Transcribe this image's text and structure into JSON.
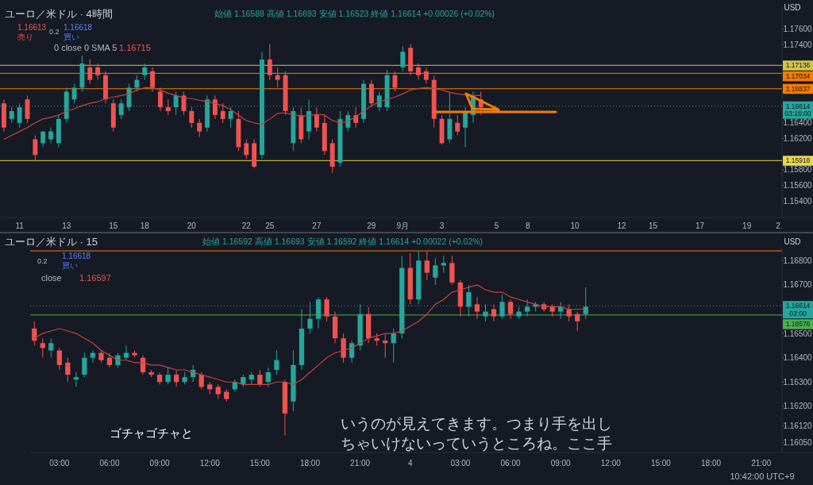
{
  "chart_data": [
    {
      "type": "candlestick",
      "title": "ユーロ／米ドル · 4時間",
      "subtitle": "始値 1.16588 高値 1.16693 安値 1.16523 終値 1.16614 +0.00026 (+0.02%)",
      "categories": [
        null,
        null,
        "11",
        null,
        null,
        null,
        null,
        null,
        "13",
        null,
        null,
        null,
        null,
        null,
        "15",
        null,
        null,
        null,
        "18",
        null,
        null,
        null,
        null,
        null,
        "20",
        null,
        null,
        null,
        null,
        null,
        null,
        "22",
        null,
        null,
        "25",
        null,
        null,
        null,
        null,
        null,
        "27",
        null,
        null,
        null,
        null,
        null,
        null,
        "29",
        null,
        null,
        null,
        "9月",
        null,
        null,
        null,
        null,
        "3",
        null,
        null,
        null,
        null,
        null,
        null,
        "5",
        null,
        null,
        null,
        "8",
        null,
        null,
        null,
        null,
        null,
        "10",
        null,
        null,
        null,
        null,
        null,
        "12",
        null,
        null,
        null,
        "15",
        null,
        null,
        null,
        null,
        null,
        "17",
        null,
        null,
        null,
        null,
        null,
        "19",
        null,
        null,
        null,
        "2"
      ],
      "series": [
        {
          "type": "candlestick",
          "ohlc": [
            [
              1.1665,
              1.167,
              1.1629,
              1.1634
            ],
            [
              1.1645,
              1.166,
              1.164,
              1.1655
            ],
            [
              1.164,
              1.1665,
              1.1634,
              1.166
            ],
            [
              1.167,
              1.1675,
              1.164,
              1.1645
            ],
            [
              1.1619,
              1.1624,
              1.1591,
              1.1599
            ],
            [
              1.1614,
              1.1629,
              1.1609,
              1.1629
            ],
            [
              1.1619,
              1.1634,
              1.1614,
              1.1629
            ],
            [
              1.1614,
              1.165,
              1.1609,
              1.1645
            ],
            [
              1.1645,
              1.1685,
              1.164,
              1.168
            ],
            [
              1.167,
              1.169,
              1.1665,
              1.1685
            ],
            [
              1.1685,
              1.1726,
              1.168,
              1.1716
            ],
            [
              1.1711,
              1.1721,
              1.169,
              1.1695
            ],
            [
              1.1711,
              1.1716,
              1.1695,
              1.1701
            ],
            [
              1.1701,
              1.1706,
              1.1665,
              1.167
            ],
            [
              1.1665,
              1.167,
              1.1629,
              1.1634
            ],
            [
              1.165,
              1.167,
              1.1645,
              1.1665
            ],
            [
              1.166,
              1.169,
              1.1655,
              1.1685
            ],
            [
              1.1685,
              1.1701,
              1.168,
              1.1695
            ],
            [
              1.1701,
              1.1716,
              1.1695,
              1.1711
            ],
            [
              1.1706,
              1.1711,
              1.168,
              1.1685
            ],
            [
              1.168,
              1.1685,
              1.1655,
              1.166
            ],
            [
              1.166,
              1.167,
              1.165,
              1.1655
            ],
            [
              1.166,
              1.168,
              1.165,
              1.1675
            ],
            [
              1.1675,
              1.168,
              1.165,
              1.1655
            ],
            [
              1.1655,
              1.166,
              1.1634,
              1.164
            ],
            [
              1.164,
              1.1645,
              1.1622,
              1.1629
            ],
            [
              1.1634,
              1.1675,
              1.1629,
              1.167
            ],
            [
              1.167,
              1.1675,
              1.1645,
              1.165
            ],
            [
              1.1655,
              1.1665,
              1.164,
              1.1645
            ],
            [
              1.1645,
              1.166,
              1.1634,
              1.1655
            ],
            [
              1.1645,
              1.1655,
              1.1604,
              1.1609
            ],
            [
              1.1614,
              1.1619,
              1.1594,
              1.1599
            ],
            [
              1.1614,
              1.1619,
              1.1582,
              1.1584
            ],
            [
              1.1599,
              1.1731,
              1.1594,
              1.1721
            ],
            [
              1.1721,
              1.1741,
              1.1695,
              1.1701
            ],
            [
              1.1701,
              1.1711,
              1.1685,
              1.1695
            ],
            [
              1.1701,
              1.1706,
              1.165,
              1.1655
            ],
            [
              1.1614,
              1.166,
              1.1604,
              1.1655
            ],
            [
              1.165,
              1.166,
              1.1614,
              1.1619
            ],
            [
              1.1629,
              1.167,
              1.1619,
              1.1655
            ],
            [
              1.165,
              1.166,
              1.1629,
              1.1634
            ],
            [
              1.164,
              1.165,
              1.1599,
              1.1604
            ],
            [
              1.1614,
              1.1619,
              1.1576,
              1.1584
            ],
            [
              1.1589,
              1.1655,
              1.1584,
              1.1645
            ],
            [
              1.1634,
              1.1655,
              1.1629,
              1.165
            ],
            [
              1.165,
              1.166,
              1.1634,
              1.164
            ],
            [
              1.1645,
              1.1695,
              1.164,
              1.169
            ],
            [
              1.169,
              1.1695,
              1.166,
              1.1665
            ],
            [
              1.166,
              1.168,
              1.1655,
              1.1675
            ],
            [
              1.166,
              1.1708,
              1.1655,
              1.1701
            ],
            [
              1.1701,
              1.1706,
              1.168,
              1.1685
            ],
            [
              1.1711,
              1.1738,
              1.1706,
              1.1731
            ],
            [
              1.1736,
              1.1741,
              1.1701,
              1.1706
            ],
            [
              1.1711,
              1.1716,
              1.1695,
              1.1701
            ],
            [
              1.1706,
              1.1711,
              1.169,
              1.1695
            ],
            [
              1.1695,
              1.1701,
              1.1634,
              1.1645
            ],
            [
              1.1645,
              1.165,
              1.1612,
              1.1614
            ],
            [
              1.1619,
              1.168,
              1.1614,
              1.1645
            ],
            [
              1.164,
              1.165,
              1.1624,
              1.1629
            ],
            [
              1.1634,
              1.166,
              1.1609,
              1.1655
            ],
            [
              1.165,
              1.168,
              1.164,
              1.1675
            ],
            [
              1.167,
              1.168,
              1.165,
              1.166
            ],
            null,
            null,
            null,
            null,
            null,
            null,
            null,
            null,
            null,
            null,
            null,
            null,
            null,
            null,
            null,
            null,
            null,
            null,
            null,
            null,
            null,
            null,
            null,
            null,
            null,
            null,
            null,
            null,
            null,
            null,
            null,
            null,
            null,
            null,
            null,
            null,
            null,
            null
          ],
          "colors": [
            "#ef5350",
            "#26a69a",
            "#26a69a",
            "#ef5350",
            "#ef5350",
            "#26a69a",
            "#26a69a",
            "#26a69a",
            "#26a69a",
            "#26a69a",
            "#26a69a",
            "#ef5350",
            "#ef5350",
            "#ef5350",
            "#ef5350",
            "#26a69a",
            "#26a69a",
            "#26a69a",
            "#26a69a",
            "#ef5350",
            "#ef5350",
            "#ef5350",
            "#26a69a",
            "#ef5350",
            "#ef5350",
            "#ef5350",
            "#26a69a",
            "#ef5350",
            "#ef5350",
            "#26a69a",
            "#ef5350",
            "#ef5350",
            "#ef5350",
            "#26a69a",
            "#ef5350",
            "#ef5350",
            "#ef5350",
            "#26a69a",
            "#ef5350",
            "#26a69a",
            "#ef5350",
            "#ef5350",
            "#ef5350",
            "#26a69a",
            "#26a69a",
            "#ef5350",
            "#26a69a",
            "#ef5350",
            "#26a69a",
            "#26a69a",
            "#ef5350",
            "#26a69a",
            "#ef5350",
            "#ef5350",
            "#ef5350",
            "#ef5350",
            "#ef5350",
            "#26a69a",
            "#ef5350",
            "#26a69a",
            "#26a69a",
            "#ef5350",
            null,
            null,
            null,
            null,
            null,
            null,
            null,
            null,
            null,
            null,
            null,
            null,
            null,
            null,
            null,
            null,
            null,
            null,
            null,
            null,
            null,
            null,
            null,
            null,
            null,
            null,
            null,
            null,
            null,
            null,
            null,
            null,
            null,
            null,
            null,
            null,
            null,
            null
          ]
        },
        {
          "type": "line",
          "color": "#c2453f",
          "values": [
            1.1619,
            1.1624,
            1.1629,
            1.1634,
            1.164,
            1.1645,
            1.1647,
            1.165,
            1.1655,
            1.1658,
            1.1662,
            1.1665,
            1.1667,
            1.1671,
            1.1673,
            1.1675,
            1.1677,
            1.1682,
            1.1685,
            1.1685,
            1.1682,
            1.1678,
            1.1675,
            1.1672,
            1.1671,
            1.1669,
            1.1667,
            1.1665,
            1.1662,
            1.1657,
            1.165,
            1.1643,
            1.164,
            1.1638,
            1.1645,
            1.1652,
            1.1653,
            1.165,
            1.1649,
            1.1649,
            1.1651,
            1.165,
            1.1643,
            1.164,
            1.1642,
            1.1648,
            1.1655,
            1.1662,
            1.1667,
            1.167,
            1.1673,
            1.1677,
            1.1682,
            1.1684,
            1.1685,
            1.1684,
            1.1682,
            1.1679,
            1.1677,
            1.1676,
            1.1675,
            1.1675,
            null,
            null,
            null,
            null,
            null,
            null,
            null,
            null,
            null,
            null,
            null,
            null,
            null,
            null,
            null,
            null,
            null,
            null,
            null,
            null,
            null,
            null,
            null,
            null,
            null,
            null,
            null,
            null,
            null,
            null,
            null,
            null,
            null,
            null,
            null,
            null,
            null,
            null
          ]
        }
      ],
      "ylim": [
        1.1519,
        1.1789
      ],
      "yticks": [
        {
          "value": 1.176,
          "label": "1.17600"
        },
        {
          "value": 1.174,
          "label": "1.17400"
        },
        {
          "value": 1.164,
          "label": "1.16400"
        },
        {
          "value": 1.162,
          "label": "1.16200"
        },
        {
          "value": 1.158,
          "label": "1.15800"
        },
        {
          "value": 1.156,
          "label": "1.15600"
        },
        {
          "value": 1.154,
          "label": "1.15400"
        }
      ],
      "ref_lines": [
        {
          "axis": "y",
          "value": 1.17136,
          "label": "1.17136",
          "color": "#d4c44a"
        },
        {
          "axis": "y",
          "value": 1.17034,
          "label": "1.17034",
          "color": "#f57c00"
        },
        {
          "axis": "y",
          "value": 1.16837,
          "label": "1.16837",
          "color": "#f57c00"
        },
        {
          "axis": "y",
          "value": 1.15918,
          "label": "1.15918",
          "color": "#e8d84a"
        },
        {
          "axis": "y",
          "value": 1.16614,
          "label": "1.16614\n03:16:00",
          "color": "#26a69a",
          "line_style": "dotted"
        }
      ],
      "annotations": [
        "売り",
        "1.16613",
        "0.2",
        "1.16618",
        "買い",
        "0 close 0 SMA 5",
        "1.16715",
        "USD"
      ],
      "grid": false
    },
    {
      "type": "candlestick",
      "title": "ユーロ／米ドル · 15",
      "subtitle": "始値 1.16592 高値 1.16693 安値 1.16592 終値 1.16614 +0.00022 (+0.02%)",
      "categories": [
        null,
        null,
        null,
        "03:00",
        null,
        null,
        null,
        null,
        null,
        "06:00",
        null,
        null,
        null,
        null,
        null,
        "09:00",
        null,
        null,
        null,
        null,
        null,
        "12:00",
        null,
        null,
        null,
        null,
        null,
        "15:00",
        null,
        null,
        null,
        null,
        null,
        "18:00",
        null,
        null,
        null,
        null,
        null,
        "21:00",
        null,
        null,
        null,
        null,
        null,
        "4",
        null,
        null,
        null,
        null,
        null,
        "03:00",
        null,
        null,
        null,
        null,
        null,
        "06:00",
        null,
        null,
        null,
        null,
        null,
        "09:00",
        null,
        null,
        null,
        null,
        null,
        "12:00",
        null,
        null,
        null,
        null,
        null,
        "15:00",
        null,
        null,
        null,
        null,
        null,
        "18:00",
        null,
        null,
        null,
        null,
        null,
        "21:00",
        null,
        null
      ],
      "series": [
        {
          "type": "candlestick",
          "ohlc": [
            [
              1.1652,
              1.1655,
              1.1645,
              1.1647
            ],
            [
              1.1646,
              1.1648,
              1.164,
              1.1644
            ],
            [
              1.1643,
              1.1648,
              1.164,
              1.1646
            ],
            [
              1.1643,
              1.1644,
              1.1635,
              1.1637
            ],
            [
              1.1638,
              1.164,
              1.163,
              1.1633
            ],
            [
              1.1631,
              1.1634,
              1.1628,
              1.1632
            ],
            [
              1.1633,
              1.1642,
              1.1632,
              1.164
            ],
            [
              1.164,
              1.1643,
              1.1638,
              1.1642
            ],
            [
              1.1642,
              1.1643,
              1.1638,
              1.1639
            ],
            [
              1.164,
              1.1642,
              1.1636,
              1.1637
            ],
            [
              1.1637,
              1.1642,
              1.1636,
              1.1641
            ],
            [
              1.164,
              1.1645,
              1.1639,
              1.1642
            ],
            [
              1.1642,
              1.1643,
              1.164,
              1.1641
            ],
            [
              1.164,
              1.1641,
              1.1633,
              1.1634
            ],
            [
              1.1634,
              1.1635,
              1.1632,
              1.1633
            ],
            [
              1.1633,
              1.1634,
              1.1629,
              1.163
            ],
            [
              1.163,
              1.1636,
              1.1629,
              1.1633
            ],
            [
              1.1633,
              1.1635,
              1.1628,
              1.163
            ],
            [
              1.163,
              1.1634,
              1.1629,
              1.1632
            ],
            [
              1.1632,
              1.1637,
              1.163,
              1.1635
            ],
            [
              1.1633,
              1.1634,
              1.1627,
              1.1628
            ],
            [
              1.1629,
              1.163,
              1.1625,
              1.1627
            ],
            [
              1.1628,
              1.1629,
              1.1623,
              1.1625
            ],
            [
              1.1626,
              1.1627,
              1.1622,
              1.1623
            ],
            [
              1.1627,
              1.1631,
              1.1626,
              1.163
            ],
            [
              1.1629,
              1.1633,
              1.1628,
              1.1632
            ],
            [
              1.1631,
              1.1634,
              1.1629,
              1.1633
            ],
            [
              1.1633,
              1.1635,
              1.1628,
              1.1629
            ],
            [
              1.163,
              1.1636,
              1.1628,
              1.1634
            ],
            [
              1.1635,
              1.1643,
              1.1633,
              1.1639
            ],
            [
              1.163,
              1.1631,
              1.1608,
              1.1617
            ],
            [
              1.1622,
              1.1643,
              1.1618,
              1.1637
            ],
            [
              1.1637,
              1.166,
              1.1635,
              1.1652
            ],
            [
              1.1652,
              1.1663,
              1.165,
              1.1656
            ],
            [
              1.1656,
              1.1665,
              1.1652,
              1.1664
            ],
            [
              1.1664,
              1.1665,
              1.1655,
              1.1657
            ],
            [
              1.1657,
              1.1659,
              1.1646,
              1.1648
            ],
            [
              1.1648,
              1.165,
              1.1638,
              1.164
            ],
            [
              1.164,
              1.1647,
              1.1638,
              1.1646
            ],
            [
              1.1645,
              1.1662,
              1.1643,
              1.1658
            ],
            [
              1.1658,
              1.1661,
              1.1646,
              1.1648
            ],
            [
              1.1648,
              1.165,
              1.1645,
              1.1647
            ],
            [
              1.1647,
              1.165,
              1.164,
              1.1646
            ],
            [
              1.1646,
              1.1652,
              1.1638,
              1.165
            ],
            [
              1.165,
              1.1682,
              1.1648,
              1.1677
            ],
            [
              1.1677,
              1.1683,
              1.1662,
              1.1664
            ],
            [
              1.1664,
              1.1684,
              1.1662,
              1.168
            ],
            [
              1.168,
              1.1684,
              1.1672,
              1.1675
            ],
            [
              1.1673,
              1.1681,
              1.167,
              1.1678
            ],
            [
              1.1678,
              1.1682,
              1.1675,
              1.1679
            ],
            [
              1.1679,
              1.1682,
              1.167,
              1.1671
            ],
            [
              1.1671,
              1.1672,
              1.1657,
              1.1661
            ],
            [
              1.1661,
              1.167,
              1.1657,
              1.1667
            ],
            [
              1.1662,
              1.1665,
              1.1656,
              1.1659
            ],
            [
              1.1657,
              1.1662,
              1.1655,
              1.1659
            ],
            [
              1.166,
              1.1662,
              1.1655,
              1.1657
            ],
            [
              1.1657,
              1.1666,
              1.1656,
              1.1663
            ],
            [
              1.1663,
              1.1664,
              1.1656,
              1.1658
            ],
            [
              1.1657,
              1.1661,
              1.1656,
              1.1659
            ],
            [
              1.1659,
              1.1664,
              1.1657,
              1.1661
            ],
            [
              1.1661,
              1.1663,
              1.1659,
              1.1662
            ],
            [
              1.1662,
              1.1663,
              1.1659,
              1.166
            ],
            [
              1.1661,
              1.1662,
              1.1657,
              1.1659
            ],
            [
              1.1659,
              1.1663,
              1.1656,
              1.1661
            ],
            [
              1.166,
              1.1662,
              1.1655,
              1.1657
            ],
            [
              1.1658,
              1.1659,
              1.1651,
              1.1655
            ],
            [
              1.1658,
              1.1669,
              1.1656,
              1.1661
            ],
            null,
            null,
            null,
            null,
            null,
            null,
            null,
            null,
            null,
            null,
            null,
            null,
            null,
            null,
            null,
            null,
            null,
            null,
            null,
            null,
            null,
            null,
            null
          ],
          "colors": [
            "#ef5350",
            "#ef5350",
            "#26a69a",
            "#ef5350",
            "#ef5350",
            "#26a69a",
            "#26a69a",
            "#26a69a",
            "#ef5350",
            "#ef5350",
            "#26a69a",
            "#26a69a",
            "#ef5350",
            "#ef5350",
            "#ef5350",
            "#ef5350",
            "#26a69a",
            "#ef5350",
            "#26a69a",
            "#26a69a",
            "#ef5350",
            "#ef5350",
            "#ef5350",
            "#ef5350",
            "#26a69a",
            "#26a69a",
            "#26a69a",
            "#ef5350",
            "#26a69a",
            "#26a69a",
            "#ef5350",
            "#26a69a",
            "#26a69a",
            "#26a69a",
            "#26a69a",
            "#ef5350",
            "#ef5350",
            "#ef5350",
            "#26a69a",
            "#26a69a",
            "#ef5350",
            "#ef5350",
            "#ef5350",
            "#26a69a",
            "#26a69a",
            "#ef5350",
            "#26a69a",
            "#ef5350",
            "#26a69a",
            "#26a69a",
            "#ef5350",
            "#ef5350",
            "#26a69a",
            "#ef5350",
            "#26a69a",
            "#ef5350",
            "#26a69a",
            "#ef5350",
            "#26a69a",
            "#26a69a",
            "#26a69a",
            "#ef5350",
            "#ef5350",
            "#26a69a",
            "#ef5350",
            "#ef5350",
            "#26a69a",
            null,
            null,
            null,
            null,
            null,
            null,
            null,
            null,
            null,
            null,
            null,
            null,
            null,
            null,
            null,
            null,
            null,
            null,
            null,
            null,
            null,
            null,
            null
          ]
        },
        {
          "type": "line",
          "color": "#c2453f",
          "values": [
            1.1648,
            1.165,
            1.1651,
            1.1652,
            1.1651,
            1.165,
            1.1648,
            1.1646,
            1.1643,
            1.1641,
            1.1639,
            1.1639,
            1.1638,
            1.1638,
            1.1637,
            1.1637,
            1.1636,
            1.1635,
            1.1635,
            1.1634,
            1.1633,
            1.1632,
            1.1631,
            1.163,
            1.163,
            1.1629,
            1.1629,
            1.1629,
            1.1629,
            1.163,
            1.163,
            1.1629,
            1.1631,
            1.1634,
            1.1637,
            1.164,
            1.1642,
            1.1643,
            1.1644,
            1.1646,
            1.1648,
            1.1649,
            1.165,
            1.165,
            1.1651,
            1.1653,
            1.1655,
            1.1658,
            1.1662,
            1.1664,
            1.1667,
            1.1668,
            1.1669,
            1.167,
            1.1668,
            1.1667,
            1.1667,
            1.1665,
            1.1664,
            1.1663,
            1.1662,
            1.1661,
            1.1661,
            1.1661,
            1.166,
            1.166,
            1.166,
            null,
            null,
            null,
            null,
            null,
            null,
            null,
            null,
            null,
            null,
            null,
            null,
            null,
            null,
            null,
            null,
            null,
            null,
            null,
            null,
            null,
            null,
            null
          ]
        }
      ],
      "ylim": [
        1.1601,
        1.1685
      ],
      "yticks": [
        {
          "value": 1.168,
          "label": "1.16800"
        },
        {
          "value": 1.167,
          "label": "1.16700"
        },
        {
          "value": 1.165,
          "label": "1.16500"
        },
        {
          "value": 1.164,
          "label": "1.16400"
        },
        {
          "value": 1.163,
          "label": "1.16300"
        },
        {
          "value": 1.162,
          "label": "1.16200"
        },
        {
          "value": 1.1612,
          "label": "1.16120"
        },
        {
          "value": 1.1605,
          "label": "1.16050"
        }
      ],
      "ref_lines": [
        {
          "axis": "y",
          "value": 1.1684,
          "label": null,
          "color": "#f57c00"
        },
        {
          "axis": "y",
          "value": 1.16576,
          "label": "1.16576",
          "color": "#4caf50"
        },
        {
          "axis": "y",
          "value": 1.16614,
          "label": "1.16614\n03:00",
          "color": "#26a69a",
          "line_style": "dotted"
        }
      ],
      "annotations": [
        "1.16618",
        "買い",
        "0.2",
        "close",
        "1.16597",
        "USD",
        "ゴチャゴチャと",
        "いうのが見えてきます。つまり手を出し",
        "ちゃいけないっていうところね。ここ手",
        "10:42:00 UTC+9"
      ],
      "grid": false
    }
  ]
}
